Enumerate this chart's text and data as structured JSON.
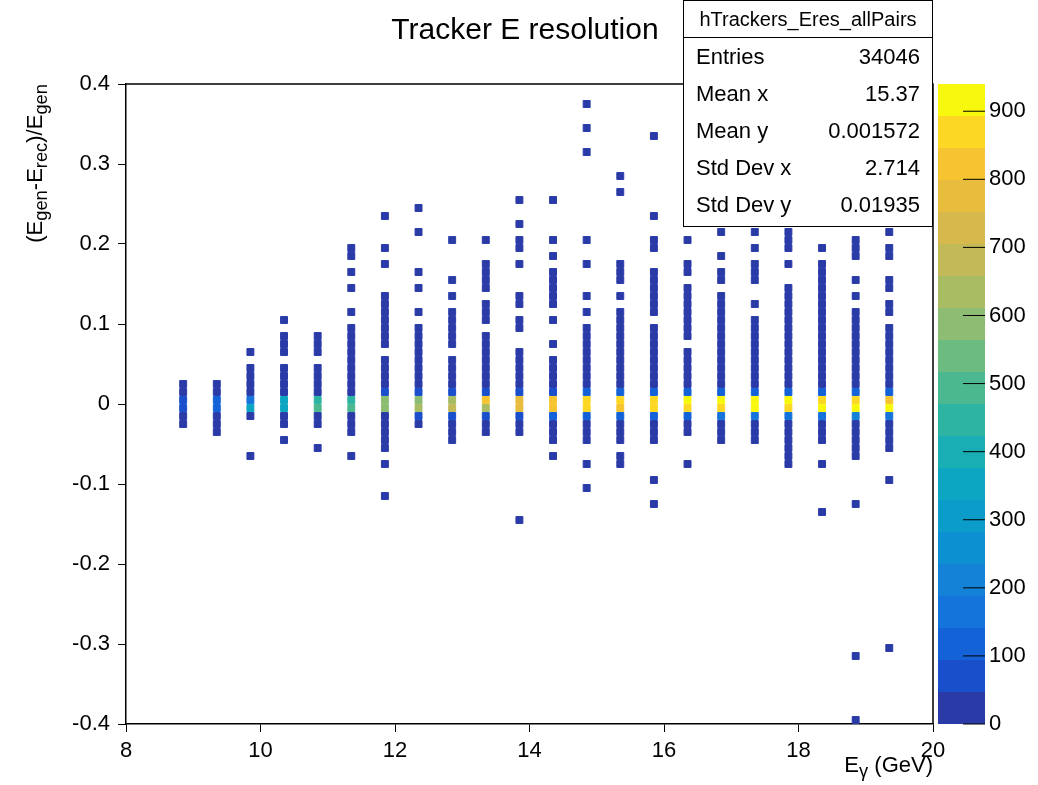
{
  "chart_data": {
    "type": "scatter",
    "title": "Tracker E resolution",
    "xlabel": "E$_{γ}$ (GeV)",
    "ylabel": "(E$_{gen}$-E$_{rec}$)/E$_{gen}$",
    "annotations": [
      "hTrackers_Eres_allPairs",
      "Entries 34046",
      "Mean x 15.37",
      "Mean y 0.001572",
      "Std Dev x 2.714",
      "Std Dev y 0.01935"
    ],
    "marker": "square",
    "series": [
      {
        "color": "#2a3ba8",
        "x": [
          8.85,
          8.85,
          8.85,
          8.85
        ],
        "values": [
          0.025,
          0.015,
          -0.015,
          -0.025
        ],
        "cvalues": [
          24,
          24,
          24,
          24
        ]
      },
      {
        "color": "#2a3ba8",
        "x": [
          9.35,
          9.35,
          9.35,
          9.35,
          9.35
        ],
        "values": [
          0.025,
          0.015,
          -0.015,
          -0.025,
          -0.035
        ],
        "cvalues": [
          24,
          24,
          24,
          24,
          24
        ]
      },
      {
        "color": "#2a3ba8",
        "x": [
          9.85,
          9.85,
          9.85,
          9.85,
          9.85,
          9.85,
          9.85
        ],
        "values": [
          0.065,
          0.045,
          0.035,
          0.025,
          0.015,
          -0.015,
          -0.065
        ],
        "cvalues": [
          24,
          24,
          24,
          24,
          24,
          24,
          24
        ]
      },
      {
        "color": "#2a3ba8",
        "x": [
          10.35,
          10.35,
          10.35,
          10.35,
          10.35,
          10.35,
          10.35,
          10.35,
          10.35,
          10.35,
          10.35
        ],
        "values": [
          0.105,
          0.085,
          0.075,
          0.065,
          0.045,
          0.035,
          0.025,
          0.015,
          -0.015,
          -0.025,
          -0.045
        ],
        "cvalues": [
          24,
          24,
          24,
          24,
          24,
          24,
          24,
          24,
          24,
          24,
          24
        ]
      },
      {
        "color": "#2a3ba8",
        "x": [
          10.85,
          10.85,
          10.85,
          10.85,
          10.85,
          10.85,
          10.85,
          10.85,
          10.85,
          10.85
        ],
        "values": [
          0.085,
          0.075,
          0.065,
          0.045,
          0.035,
          0.025,
          0.015,
          -0.015,
          -0.025,
          -0.055
        ],
        "cvalues": [
          24,
          24,
          24,
          24,
          24,
          24,
          24,
          24,
          24,
          24
        ]
      },
      {
        "color": "#2a3ba8",
        "x": [
          11.35,
          11.35,
          11.35,
          11.35,
          11.35,
          11.35,
          11.35,
          11.35,
          11.35,
          11.35,
          11.35,
          11.35,
          11.35,
          11.35,
          11.35,
          11.35,
          11.35,
          11.35
        ],
        "values": [
          0.195,
          0.185,
          0.165,
          0.145,
          0.115,
          0.095,
          0.085,
          0.075,
          0.065,
          0.055,
          0.045,
          0.035,
          0.025,
          0.015,
          -0.015,
          -0.025,
          -0.035,
          -0.065
        ],
        "cvalues": [
          24,
          24,
          24,
          24,
          24,
          24,
          24,
          24,
          24,
          24,
          24,
          24,
          24,
          24,
          24,
          24,
          24,
          24
        ]
      },
      {
        "color": "#2a3ba8",
        "x": [
          11.85,
          11.85,
          11.85,
          11.85,
          11.85,
          11.85,
          11.85,
          11.85,
          11.85,
          11.85,
          11.85,
          11.85,
          11.85,
          11.85,
          11.85,
          11.85,
          11.85,
          11.85,
          11.85,
          11.85,
          11.85
        ],
        "values": [
          0.235,
          0.195,
          0.175,
          0.135,
          0.125,
          0.115,
          0.105,
          0.095,
          0.085,
          0.075,
          0.055,
          0.045,
          0.035,
          0.025,
          -0.015,
          -0.025,
          -0.035,
          -0.045,
          -0.055,
          -0.075,
          -0.115
        ],
        "cvalues": [
          24,
          24,
          24,
          24,
          24,
          24,
          24,
          24,
          24,
          24,
          24,
          24,
          24,
          24,
          24,
          24,
          24,
          24,
          24,
          24,
          24
        ]
      },
      {
        "color": "#2a3ba8",
        "x": [
          12.35,
          12.35,
          12.35,
          12.35,
          12.35,
          12.35,
          12.35,
          12.35,
          12.35,
          12.35,
          12.35,
          12.35,
          12.35,
          12.35
        ],
        "values": [
          0.245,
          0.215,
          0.165,
          0.145,
          0.115,
          0.095,
          0.085,
          0.075,
          0.065,
          0.055,
          0.045,
          0.035,
          0.025,
          -0.025
        ],
        "cvalues": [
          24,
          24,
          24,
          24,
          24,
          24,
          24,
          24,
          24,
          24,
          24,
          24,
          24,
          24
        ]
      },
      {
        "color": "#2a3ba8",
        "x": [
          12.85,
          12.85,
          12.85,
          12.85,
          12.85,
          12.85,
          12.85,
          12.85,
          12.85,
          12.85,
          12.85,
          12.85,
          12.85,
          12.85,
          12.85
        ],
        "values": [
          0.205,
          0.155,
          0.135,
          0.115,
          0.105,
          0.095,
          0.085,
          0.075,
          0.055,
          0.045,
          0.035,
          0.025,
          -0.025,
          -0.035,
          -0.045
        ],
        "cvalues": [
          24,
          24,
          24,
          24,
          24,
          24,
          24,
          24,
          24,
          24,
          24,
          24,
          24,
          24,
          24
        ]
      },
      {
        "color": "#2a3ba8",
        "x": [
          13.35,
          13.35,
          13.35,
          13.35,
          13.35,
          13.35,
          13.35,
          13.35,
          13.35,
          13.35,
          13.35,
          13.35,
          13.35,
          13.35,
          13.35,
          13.35,
          13.35
        ],
        "values": [
          0.205,
          0.175,
          0.165,
          0.155,
          0.145,
          0.125,
          0.115,
          0.105,
          0.085,
          0.075,
          0.065,
          0.055,
          0.045,
          0.035,
          0.025,
          -0.025,
          -0.035
        ],
        "cvalues": [
          24,
          24,
          24,
          24,
          24,
          24,
          24,
          24,
          24,
          24,
          24,
          24,
          24,
          24,
          24,
          24,
          24
        ]
      },
      {
        "color": "#2a3ba8",
        "x": [
          13.85,
          13.85,
          13.85,
          13.85,
          13.85,
          13.85,
          13.85,
          13.85,
          13.85,
          13.85,
          13.85,
          13.85,
          13.85,
          13.85,
          13.85,
          13.85,
          13.85
        ],
        "values": [
          0.255,
          0.225,
          0.205,
          0.195,
          0.175,
          0.135,
          0.125,
          0.105,
          0.095,
          0.065,
          0.055,
          0.045,
          0.035,
          0.025,
          -0.025,
          -0.035,
          -0.145
        ],
        "cvalues": [
          24,
          24,
          24,
          24,
          24,
          24,
          24,
          24,
          24,
          24,
          24,
          24,
          24,
          24,
          24,
          24,
          24
        ]
      },
      {
        "color": "#2a3ba8",
        "x": [
          14.35,
          14.35,
          14.35,
          14.35,
          14.35,
          14.35,
          14.35,
          14.35,
          14.35,
          14.35,
          14.35,
          14.35,
          14.35,
          14.35,
          14.35,
          14.35,
          14.35,
          14.35
        ],
        "values": [
          0.255,
          0.205,
          0.185,
          0.165,
          0.155,
          0.145,
          0.135,
          0.125,
          0.105,
          0.075,
          0.055,
          0.045,
          0.035,
          0.025,
          -0.025,
          -0.035,
          -0.045,
          -0.065
        ],
        "cvalues": [
          24,
          24,
          24,
          24,
          24,
          24,
          24,
          24,
          24,
          24,
          24,
          24,
          24,
          24,
          24,
          24,
          24,
          24
        ]
      },
      {
        "color": "#2a3ba8",
        "x": [
          14.85,
          14.85,
          14.85,
          14.85,
          14.85,
          14.85,
          14.85,
          14.85,
          14.85,
          14.85,
          14.85,
          14.85,
          14.85,
          14.85,
          14.85,
          14.85,
          14.85,
          14.85,
          14.85,
          14.85
        ],
        "values": [
          0.375,
          0.345,
          0.315,
          0.205,
          0.175,
          0.135,
          0.115,
          0.095,
          0.085,
          0.075,
          0.065,
          0.055,
          0.045,
          0.035,
          0.025,
          -0.025,
          -0.035,
          -0.045,
          -0.075,
          -0.105
        ],
        "cvalues": [
          24,
          24,
          24,
          24,
          24,
          24,
          24,
          24,
          24,
          24,
          24,
          24,
          24,
          24,
          24,
          24,
          24,
          24,
          24,
          24
        ]
      },
      {
        "color": "#2a3ba8",
        "x": [
          15.35,
          15.35,
          15.35,
          15.35,
          15.35,
          15.35,
          15.35,
          15.35,
          15.35,
          15.35,
          15.35,
          15.35,
          15.35,
          15.35,
          15.35,
          15.35,
          15.35,
          15.35,
          15.35,
          15.35,
          15.35
        ],
        "values": [
          0.285,
          0.265,
          0.175,
          0.165,
          0.155,
          0.135,
          0.115,
          0.105,
          0.095,
          0.085,
          0.075,
          0.065,
          0.055,
          0.045,
          0.035,
          0.025,
          -0.025,
          -0.035,
          -0.045,
          -0.065,
          -0.075
        ],
        "cvalues": [
          24,
          24,
          24,
          24,
          24,
          24,
          24,
          24,
          24,
          24,
          24,
          24,
          24,
          24,
          24,
          24,
          24,
          24,
          24,
          24,
          24
        ]
      },
      {
        "color": "#2a3ba8",
        "x": [
          15.85,
          15.85,
          15.85,
          15.85,
          15.85,
          15.85,
          15.85,
          15.85,
          15.85,
          15.85,
          15.85,
          15.85,
          15.85,
          15.85,
          15.85,
          15.85,
          15.85,
          15.85,
          15.85,
          15.85,
          15.85,
          15.85,
          15.85
        ],
        "values": [
          0.335,
          0.235,
          0.205,
          0.195,
          0.165,
          0.155,
          0.145,
          0.135,
          0.125,
          0.115,
          0.095,
          0.085,
          0.075,
          0.065,
          0.055,
          0.045,
          0.035,
          0.025,
          -0.025,
          -0.035,
          -0.045,
          -0.095,
          -0.125
        ],
        "cvalues": [
          24,
          24,
          24,
          24,
          24,
          24,
          24,
          24,
          24,
          24,
          24,
          24,
          24,
          24,
          24,
          24,
          24,
          24,
          24,
          24,
          24,
          24,
          24
        ]
      },
      {
        "color": "#2a3ba8",
        "x": [
          16.35,
          16.35,
          16.35,
          16.35,
          16.35,
          16.35,
          16.35,
          16.35,
          16.35,
          16.35,
          16.35,
          16.35,
          16.35,
          16.35,
          16.35,
          16.35,
          16.35,
          16.35
        ],
        "values": [
          0.205,
          0.175,
          0.165,
          0.145,
          0.135,
          0.125,
          0.115,
          0.105,
          0.095,
          0.085,
          0.065,
          0.055,
          0.045,
          0.035,
          0.025,
          -0.025,
          -0.035,
          -0.075
        ],
        "cvalues": [
          24,
          24,
          24,
          24,
          24,
          24,
          24,
          24,
          24,
          24,
          24,
          24,
          24,
          24,
          24,
          24,
          24,
          24
        ]
      },
      {
        "color": "#2a3ba8",
        "x": [
          16.85,
          16.85,
          16.85,
          16.85,
          16.85,
          16.85,
          16.85,
          16.85,
          16.85,
          16.85,
          16.85,
          16.85,
          16.85,
          16.85,
          16.85,
          16.85,
          16.85,
          16.85,
          16.85
        ],
        "values": [
          0.215,
          0.185,
          0.165,
          0.155,
          0.135,
          0.125,
          0.115,
          0.105,
          0.095,
          0.085,
          0.075,
          0.065,
          0.055,
          0.045,
          0.035,
          0.025,
          -0.025,
          -0.035,
          -0.045
        ],
        "cvalues": [
          24,
          24,
          24,
          24,
          24,
          24,
          24,
          24,
          24,
          24,
          24,
          24,
          24,
          24,
          24,
          24,
          24,
          24,
          24
        ]
      },
      {
        "color": "#2a3ba8",
        "x": [
          17.35,
          17.35,
          17.35,
          17.35,
          17.35,
          17.35,
          17.35,
          17.35,
          17.35,
          17.35,
          17.35,
          17.35,
          17.35,
          17.35,
          17.35,
          17.35,
          17.35,
          17.35
        ],
        "values": [
          0.215,
          0.195,
          0.175,
          0.165,
          0.155,
          0.125,
          0.105,
          0.095,
          0.085,
          0.075,
          0.065,
          0.055,
          0.045,
          0.035,
          0.025,
          -0.025,
          -0.035,
          -0.045
        ],
        "cvalues": [
          24,
          24,
          24,
          24,
          24,
          24,
          24,
          24,
          24,
          24,
          24,
          24,
          24,
          24,
          24,
          24,
          24,
          24
        ]
      },
      {
        "color": "#2a3ba8",
        "x": [
          17.85,
          17.85,
          17.85,
          17.85,
          17.85,
          17.85,
          17.85,
          17.85,
          17.85,
          17.85,
          17.85,
          17.85,
          17.85,
          17.85,
          17.85,
          17.85,
          17.85,
          17.85,
          17.85,
          17.85,
          17.85,
          17.85,
          17.85
        ],
        "values": [
          0.215,
          0.205,
          0.195,
          0.175,
          0.145,
          0.135,
          0.125,
          0.115,
          0.105,
          0.095,
          0.085,
          0.075,
          0.065,
          0.055,
          0.045,
          0.035,
          0.025,
          -0.025,
          -0.035,
          -0.045,
          -0.055,
          -0.065,
          -0.075
        ],
        "cvalues": [
          24,
          24,
          24,
          24,
          24,
          24,
          24,
          24,
          24,
          24,
          24,
          24,
          24,
          24,
          24,
          24,
          24,
          24,
          24,
          24,
          24,
          24,
          24
        ]
      },
      {
        "color": "#2a3ba8",
        "x": [
          18.35,
          18.35,
          18.35,
          18.35,
          18.35,
          18.35,
          18.35,
          18.35,
          18.35,
          18.35,
          18.35,
          18.35,
          18.35,
          18.35,
          18.35,
          18.35,
          18.35,
          18.35,
          18.35,
          18.35,
          18.35,
          18.35
        ],
        "values": [
          0.195,
          0.175,
          0.165,
          0.155,
          0.145,
          0.135,
          0.125,
          0.115,
          0.105,
          0.095,
          0.085,
          0.075,
          0.065,
          0.055,
          0.045,
          0.035,
          0.025,
          -0.025,
          -0.035,
          -0.045,
          -0.075,
          -0.135
        ],
        "cvalues": [
          24,
          24,
          24,
          24,
          24,
          24,
          24,
          24,
          24,
          24,
          24,
          24,
          24,
          24,
          24,
          24,
          24,
          24,
          24,
          24,
          24,
          24
        ]
      },
      {
        "color": "#2a3ba8",
        "x": [
          18.85,
          18.85,
          18.85,
          18.85,
          18.85,
          18.85,
          18.85,
          18.85,
          18.85,
          18.85,
          18.85,
          18.85,
          18.85,
          18.85,
          18.85,
          18.85,
          18.85,
          18.85,
          18.85,
          18.85,
          18.85,
          18.85,
          18.85
        ],
        "values": [
          0.205,
          0.195,
          0.185,
          0.155,
          0.135,
          0.115,
          0.105,
          0.095,
          0.085,
          0.075,
          0.065,
          0.055,
          0.045,
          0.035,
          0.025,
          -0.025,
          -0.035,
          -0.045,
          -0.055,
          -0.065,
          -0.125,
          -0.315,
          -0.395
        ],
        "cvalues": [
          24,
          24,
          24,
          24,
          24,
          24,
          24,
          24,
          24,
          24,
          24,
          24,
          24,
          24,
          24,
          24,
          24,
          24,
          24,
          24,
          24,
          24,
          24
        ]
      },
      {
        "color": "#2a3ba8",
        "x": [
          19.35,
          19.35,
          19.35,
          19.35,
          19.35,
          19.35,
          19.35,
          19.35,
          19.35,
          19.35,
          19.35,
          19.35,
          19.35,
          19.35,
          19.35,
          19.35,
          19.35,
          19.35,
          19.35,
          19.35,
          19.35
        ],
        "values": [
          0.215,
          0.195,
          0.185,
          0.155,
          0.145,
          0.125,
          0.115,
          0.095,
          0.085,
          0.075,
          0.065,
          0.055,
          0.045,
          0.035,
          0.025,
          -0.025,
          -0.035,
          -0.045,
          -0.055,
          -0.095,
          -0.305
        ],
        "cvalues": [
          24,
          24,
          24,
          24,
          24,
          24,
          24,
          24,
          24,
          24,
          24,
          24,
          24,
          24,
          24,
          24,
          24,
          24,
          24,
          24,
          24
        ]
      },
      {
        "color": "#1a4fcc",
        "x": [
          8.85,
          8.85,
          11.85,
          12.35,
          12.35,
          12.85,
          12.85,
          13.35,
          13.35,
          13.85,
          13.85,
          14.35
        ],
        "values": [
          0.005,
          -0.005,
          0.015,
          0.015,
          -0.015,
          0.015,
          -0.015,
          0.015,
          -0.015,
          0.015,
          -0.015,
          0.015
        ],
        "cvalues": [
          70,
          70,
          70,
          70,
          70,
          70,
          70,
          70,
          70,
          70,
          70,
          70
        ]
      },
      {
        "color": "#1462d8",
        "x": [
          9.35,
          9.35,
          14.35,
          14.85,
          14.85,
          15.35,
          15.35,
          15.85,
          15.85,
          16.35,
          16.35,
          16.85,
          17.35,
          17.85,
          18.35,
          18.85,
          19.35
        ],
        "values": [
          0.005,
          -0.005,
          -0.015,
          0.015,
          -0.015,
          0.015,
          -0.015,
          0.015,
          -0.015,
          0.015,
          -0.015,
          0.015,
          0.015,
          0.015,
          0.015,
          0.015,
          0.015
        ],
        "cvalues": [
          118,
          118,
          118,
          118,
          118,
          118,
          118,
          118,
          118,
          118,
          118,
          118,
          118,
          118,
          118,
          118,
          118
        ]
      },
      {
        "color": "#1574dc",
        "x": [
          9.85,
          16.85,
          17.35,
          17.85,
          18.35,
          19.35
        ],
        "values": [
          0.005,
          -0.015,
          -0.015,
          -0.015,
          -0.015,
          -0.015
        ],
        "cvalues": [
          165,
          165,
          165,
          165,
          165,
          165
        ]
      },
      {
        "color": "#1482d6",
        "x": [
          18.85
        ],
        "values": [
          -0.015
        ],
        "cvalues": [
          212
        ]
      },
      {
        "color": "#0ca6c2",
        "x": [
          9.85,
          10.35,
          10.35
        ],
        "values": [
          -0.005,
          0.005,
          -0.005
        ],
        "cvalues": [
          352,
          352,
          352
        ]
      },
      {
        "color": "#2eb4a2",
        "x": [
          10.85,
          11.35
        ],
        "values": [
          0.005,
          0.005
        ],
        "cvalues": [
          446,
          446
        ]
      },
      {
        "color": "#4cb890",
        "x": [
          10.85,
          11.35
        ],
        "values": [
          -0.005,
          -0.005
        ],
        "cvalues": [
          494,
          494
        ]
      },
      {
        "color": "#8cbd72",
        "x": [
          11.85,
          11.85,
          12.35
        ],
        "values": [
          0.005,
          -0.005,
          0.005
        ],
        "cvalues": [
          588,
          588,
          588
        ]
      },
      {
        "color": "#a8bc64",
        "x": [
          12.35,
          12.85,
          13.35
        ],
        "values": [
          -0.005,
          0.005,
          -0.005
        ],
        "cvalues": [
          635,
          635,
          635
        ]
      },
      {
        "color": "#c2ba58",
        "x": [
          12.85
        ],
        "values": [
          -0.005
        ],
        "cvalues": [
          682
        ]
      },
      {
        "color": "#e8bc3c",
        "x": [
          13.85,
          13.85
        ],
        "values": [
          0.005,
          -0.005
        ],
        "cvalues": [
          776,
          776
        ]
      },
      {
        "color": "#f6c430",
        "x": [
          13.35,
          14.35,
          14.35,
          15.35,
          19.35
        ],
        "values": [
          0.005,
          0.005,
          -0.005,
          -0.005,
          0.005
        ],
        "cvalues": [
          823,
          823,
          823,
          823,
          823
        ]
      },
      {
        "color": "#fcd824",
        "x": [
          14.85,
          14.85,
          15.35,
          15.85,
          15.85,
          16.35,
          16.85,
          17.85,
          18.35,
          18.85
        ],
        "values": [
          0.005,
          -0.005,
          0.005,
          0.005,
          -0.005,
          -0.005,
          -0.005,
          -0.005,
          0.005,
          0.005
        ],
        "cvalues": [
          870,
          870,
          870,
          870,
          870,
          870,
          870,
          870,
          870,
          870
        ]
      },
      {
        "color": "#f8f80e",
        "x": [
          16.35,
          16.85,
          17.35,
          17.35,
          17.85,
          18.35,
          18.85,
          19.35
        ],
        "values": [
          0.005,
          0.005,
          0.005,
          -0.005,
          0.005,
          -0.005,
          -0.005,
          -0.005
        ],
        "cvalues": [
          916,
          916,
          916,
          916,
          916,
          916,
          916,
          916
        ]
      }
    ],
    "xlim": [
      8,
      20
    ],
    "xticks": [
      8,
      10,
      12,
      14,
      16,
      18,
      20
    ],
    "ylim": [
      -0.4,
      0.4
    ],
    "yticks": [
      -0.4,
      -0.3,
      -0.2,
      -0.1,
      0,
      0.1,
      0.2,
      0.3,
      0.4
    ],
    "clim": [
      0,
      940
    ],
    "cticks": [
      0,
      100,
      200,
      300,
      400,
      500,
      600,
      700,
      800,
      900
    ]
  }
}
